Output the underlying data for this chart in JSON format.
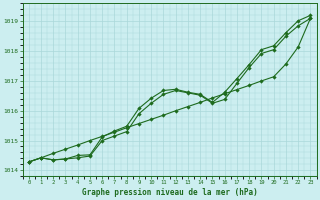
{
  "xlabel": "Graphe pression niveau de la mer (hPa)",
  "ylim": [
    1013.8,
    1019.5
  ],
  "xlim": [
    -0.5,
    23.5
  ],
  "yticks": [
    1014,
    1015,
    1016,
    1017,
    1018,
    1019
  ],
  "xticks": [
    0,
    1,
    2,
    3,
    4,
    5,
    6,
    7,
    8,
    9,
    10,
    11,
    12,
    13,
    14,
    15,
    16,
    17,
    18,
    19,
    20,
    21,
    22,
    23
  ],
  "background_color": "#cceef0",
  "grid_color": "#aad8da",
  "line_color": "#1e6b1e",
  "smooth_line": [
    1014.28,
    1014.42,
    1014.57,
    1014.71,
    1014.85,
    1015.0,
    1015.14,
    1015.28,
    1015.43,
    1015.57,
    1015.71,
    1015.85,
    1016.0,
    1016.14,
    1016.28,
    1016.43,
    1016.57,
    1016.71,
    1016.85,
    1017.0,
    1017.14,
    1017.57,
    1018.14,
    1019.1
  ],
  "wavy1": [
    1014.28,
    1014.42,
    1014.35,
    1014.38,
    1014.42,
    1014.48,
    1015.0,
    1015.15,
    1015.3,
    1015.9,
    1016.25,
    1016.55,
    1016.68,
    1016.6,
    1016.52,
    1016.25,
    1016.38,
    1016.92,
    1017.45,
    1017.92,
    1018.05,
    1018.5,
    1018.85,
    1019.1
  ],
  "wavy2": [
    1014.28,
    1014.42,
    1014.35,
    1014.38,
    1014.5,
    1014.52,
    1015.12,
    1015.32,
    1015.48,
    1016.08,
    1016.42,
    1016.68,
    1016.72,
    1016.62,
    1016.55,
    1016.28,
    1016.62,
    1017.08,
    1017.55,
    1018.05,
    1018.18,
    1018.62,
    1019.02,
    1019.2
  ]
}
